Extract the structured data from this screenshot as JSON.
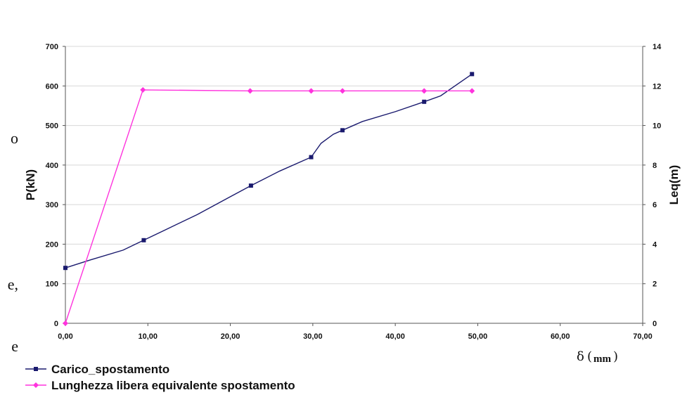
{
  "left_margin_text": [
    "o",
    "e,",
    "e"
  ],
  "chart_data": {
    "type": "line",
    "title": "",
    "xlabel": "δ",
    "xlabel_unit": "mm",
    "ylabel": "P(kN)",
    "y2label": "Leq(m)",
    "xlim": [
      0,
      70
    ],
    "ylim": [
      0,
      700
    ],
    "y2lim": [
      0,
      14
    ],
    "x_ticks": [
      "0,00",
      "10,00",
      "20,00",
      "30,00",
      "40,00",
      "50,00",
      "60,00",
      "70,00"
    ],
    "y_ticks": [
      "0",
      "100",
      "200",
      "300",
      "400",
      "500",
      "600",
      "700"
    ],
    "y2_ticks": [
      "0",
      "2",
      "4",
      "6",
      "8",
      "10",
      "12",
      "14"
    ],
    "grid": "horizontal",
    "legend_position": "bottom-left",
    "series": [
      {
        "name": "Carico_spostamento",
        "axis": "left",
        "color": "#1a1a6e",
        "marker": "square",
        "x": [
          0,
          9.5,
          22.5,
          29.8,
          33.6,
          43.5,
          49.3
        ],
        "y": [
          140,
          210,
          348,
          420,
          488,
          560,
          630
        ],
        "path_x": [
          0,
          3,
          7,
          9.5,
          12,
          16,
          20,
          22.5,
          26,
          29.8,
          31,
          32.5,
          33.6,
          36,
          40,
          43.5,
          45.5,
          49.3
        ],
        "path_y": [
          140,
          160,
          185,
          210,
          235,
          275,
          320,
          348,
          385,
          420,
          455,
          478,
          488,
          510,
          535,
          560,
          575,
          630
        ]
      },
      {
        "name": "Lunghezza libera equivalente spostamento",
        "axis": "right",
        "color": "#ff33dd",
        "marker": "diamond",
        "x": [
          0,
          9.4,
          22.4,
          29.8,
          33.6,
          43.5,
          49.3
        ],
        "y": [
          0,
          11.8,
          11.75,
          11.75,
          11.75,
          11.75,
          11.75
        ]
      }
    ]
  }
}
